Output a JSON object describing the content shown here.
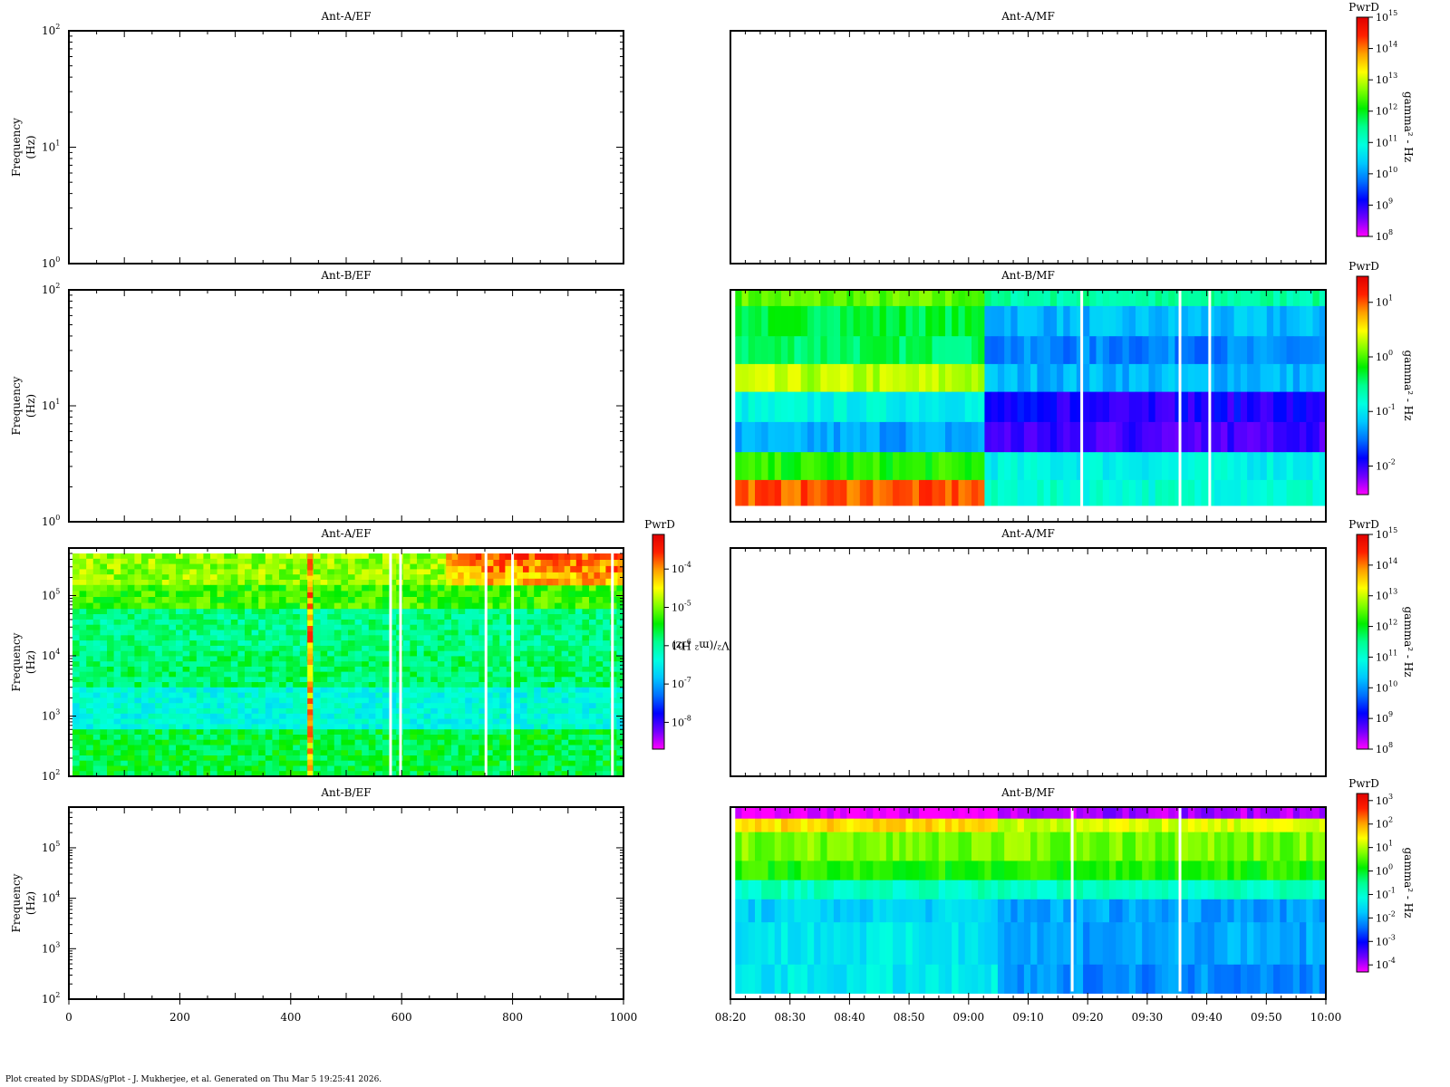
{
  "footer": "Plot created by SDDAS/gPlot - J. Mukherjee, et al.  Generated on Thu Mar 5 19:25:41 2026.",
  "colors": {
    "frame": "#000000",
    "gap": "#ffffff",
    "colormap": [
      "#ff00ff",
      "#7000ff",
      "#0000ff",
      "#0070ff",
      "#00c8ff",
      "#00ffe0",
      "#00ff90",
      "#00ee00",
      "#80ff00",
      "#ffff00",
      "#ffa000",
      "#ff2000",
      "#e00000"
    ]
  },
  "chart_data": [
    {
      "id": "left-1",
      "type": "heatmap",
      "title": "Ant-A/EF",
      "ylabel": [
        "Frequency",
        "(Hz)"
      ],
      "yscale": "log",
      "ylim": [
        1,
        100
      ],
      "yticks": [
        {
          "v": 1,
          "e": "0"
        },
        {
          "v": 10,
          "e": "1"
        },
        {
          "v": 100,
          "e": "2"
        }
      ],
      "xlim": [
        0,
        1000
      ],
      "has_data": false
    },
    {
      "id": "right-1",
      "type": "heatmap",
      "title": "Ant-A/MF",
      "xlim": [
        0,
        100
      ],
      "has_data": false,
      "colorbar": {
        "title": "PwrD",
        "label": "gamma² - Hz",
        "scale": "log",
        "range": [
          100000000,
          1000000000000000
        ],
        "ticks": [
          {
            "v": 100000000,
            "e": "8"
          },
          {
            "v": 1000000000,
            "e": "9"
          },
          {
            "v": 10000000000,
            "e": "10"
          },
          {
            "v": 100000000000,
            "e": "11"
          },
          {
            "v": 1000000000000,
            "e": "12"
          },
          {
            "v": 10000000000000,
            "e": "13"
          },
          {
            "v": 100000000000000,
            "e": "14"
          },
          {
            "v": 1000000000000000,
            "e": "15"
          }
        ]
      }
    },
    {
      "id": "left-2",
      "type": "heatmap",
      "title": "Ant-B/EF",
      "ylabel": [
        "Frequency",
        "(Hz)"
      ],
      "yscale": "log",
      "ylim": [
        1,
        100
      ],
      "yticks": [
        {
          "v": 1,
          "e": "0"
        },
        {
          "v": 10,
          "e": "1"
        },
        {
          "v": 100,
          "e": "2"
        }
      ],
      "xlim": [
        0,
        1000
      ],
      "has_data": false
    },
    {
      "id": "right-2",
      "type": "heatmap",
      "title": "Ant-B/MF",
      "xlim": [
        0,
        100
      ],
      "has_data": true,
      "colorbar": {
        "title": "PwrD",
        "label": "gamma² - Hz",
        "scale": "log",
        "range": [
          0.003,
          30
        ],
        "ticks": [
          {
            "v": 0.01,
            "e": "-2"
          },
          {
            "v": 0.1,
            "e": "-1"
          },
          {
            "v": 1,
            "e": "0"
          },
          {
            "v": 10,
            "e": "1"
          }
        ]
      },
      "rows": [
        {
          "from": 0.93,
          "to": 1.0,
          "levels": [
            0.64,
            0.48
          ]
        },
        {
          "from": 0.8,
          "to": 0.93,
          "levels": [
            0.55,
            0.32
          ]
        },
        {
          "from": 0.68,
          "to": 0.8,
          "levels": [
            0.53,
            0.27
          ]
        },
        {
          "from": 0.56,
          "to": 0.68,
          "levels": [
            0.7,
            0.32
          ]
        },
        {
          "from": 0.43,
          "to": 0.56,
          "levels": [
            0.4,
            0.15
          ]
        },
        {
          "from": 0.3,
          "to": 0.43,
          "levels": [
            0.3,
            0.12
          ]
        },
        {
          "from": 0.18,
          "to": 0.3,
          "levels": [
            0.6,
            0.4
          ]
        },
        {
          "from": 0.07,
          "to": 0.18,
          "levels": [
            0.88,
            0.43
          ]
        }
      ],
      "split_x": 42.5,
      "gaps_x": [
        0.2,
        80.5,
        59.0,
        75.5
      ]
    },
    {
      "id": "left-3",
      "type": "heatmap",
      "title": "Ant-A/EF",
      "ylabel": [
        "Frequency",
        "(Hz)"
      ],
      "yscale": "log",
      "ylim": [
        100,
        500000
      ],
      "yticks": [
        {
          "v": 100,
          "e": "2"
        },
        {
          "v": 1000,
          "e": "3"
        },
        {
          "v": 10000,
          "e": "4"
        },
        {
          "v": 100000,
          "e": "5"
        }
      ],
      "xlim": [
        0,
        1000
      ],
      "has_data": true,
      "colorbar": {
        "title": "PwrD",
        "label": "V²/(m² Hz)",
        "scale": "log",
        "range": [
          2e-09,
          0.0008
        ],
        "ticks": [
          {
            "v": 1e-08,
            "e": "-8"
          },
          {
            "v": 1e-07,
            "e": "-7"
          },
          {
            "v": 1e-06,
            "e": "-6"
          },
          {
            "v": 1e-05,
            "e": "-5"
          },
          {
            "v": 0.0001,
            "e": "-4"
          }
        ]
      },
      "bands": [
        {
          "from": 150000,
          "to": 500000,
          "level": 0.68
        },
        {
          "from": 60000,
          "to": 150000,
          "level": 0.62
        },
        {
          "from": 12000,
          "to": 60000,
          "level": 0.5
        },
        {
          "from": 3000,
          "to": 12000,
          "level": 0.52
        },
        {
          "from": 600,
          "to": 3000,
          "level": 0.42
        },
        {
          "from": 100,
          "to": 600,
          "level": 0.55
        }
      ],
      "bright_stripe_x": [
        430,
        440
      ],
      "hot_region": {
        "x": [
          680,
          1000
        ],
        "y": [
          150000,
          500000
        ],
        "level": 0.88
      },
      "gaps_x": [
        580,
        598,
        752,
        800,
        980
      ]
    },
    {
      "id": "right-3",
      "type": "heatmap",
      "title": "Ant-A/MF",
      "xlim": [
        0,
        100
      ],
      "has_data": false,
      "colorbar": {
        "title": "PwrD",
        "label": "gamma² - Hz",
        "scale": "log",
        "range": [
          100000000,
          1000000000000000
        ],
        "ticks": [
          {
            "v": 100000000,
            "e": "8"
          },
          {
            "v": 1000000000,
            "e": "9"
          },
          {
            "v": 10000000000,
            "e": "10"
          },
          {
            "v": 100000000000,
            "e": "11"
          },
          {
            "v": 1000000000000,
            "e": "12"
          },
          {
            "v": 10000000000000,
            "e": "13"
          },
          {
            "v": 100000000000000,
            "e": "14"
          },
          {
            "v": 1000000000000000,
            "e": "15"
          }
        ]
      }
    },
    {
      "id": "left-4",
      "type": "heatmap",
      "title": "Ant-B/EF",
      "ylabel": [
        "Frequency",
        "(Hz)"
      ],
      "yscale": "log",
      "ylim": [
        100,
        500000
      ],
      "yticks": [
        {
          "v": 100,
          "e": "2"
        },
        {
          "v": 1000,
          "e": "3"
        },
        {
          "v": 10000,
          "e": "4"
        },
        {
          "v": 100000,
          "e": "5"
        }
      ],
      "xlim": [
        0,
        1000
      ],
      "has_data": false,
      "xticks": [
        "0",
        "200",
        "400",
        "600",
        "800",
        "1000"
      ]
    },
    {
      "id": "right-4",
      "type": "heatmap",
      "title": "Ant-B/MF",
      "xlim": [
        0,
        100
      ],
      "has_data": true,
      "xticks": [
        "08:20",
        "08:30",
        "08:40",
        "08:50",
        "09:00",
        "09:10",
        "09:20",
        "09:30",
        "09:40",
        "09:50",
        "10:00"
      ],
      "colorbar": {
        "title": "PwrD",
        "label": "gamma² - Hz",
        "scale": "log",
        "range": [
          5e-05,
          2000
        ],
        "ticks": [
          {
            "v": 0.0001,
            "e": "-4"
          },
          {
            "v": 0.001,
            "e": "-3"
          },
          {
            "v": 0.01,
            "e": "-2"
          },
          {
            "v": 0.1,
            "e": "-1"
          },
          {
            "v": 1,
            "e": "0"
          },
          {
            "v": 10,
            "e": "1"
          },
          {
            "v": 100,
            "e": "2"
          },
          {
            "v": 1000,
            "e": "3"
          }
        ]
      },
      "rows": [
        {
          "from": 0.94,
          "to": 1.0,
          "levels": [
            0.0,
            0.05
          ]
        },
        {
          "from": 0.87,
          "to": 0.94,
          "levels": [
            0.78,
            0.72
          ]
        },
        {
          "from": 0.72,
          "to": 0.87,
          "levels": [
            0.66,
            0.66
          ]
        },
        {
          "from": 0.62,
          "to": 0.72,
          "levels": [
            0.6,
            0.6
          ]
        },
        {
          "from": 0.52,
          "to": 0.62,
          "levels": [
            0.45,
            0.45
          ]
        },
        {
          "from": 0.4,
          "to": 0.52,
          "levels": [
            0.35,
            0.3
          ]
        },
        {
          "from": 0.18,
          "to": 0.4,
          "levels": [
            0.38,
            0.3
          ]
        },
        {
          "from": 0.03,
          "to": 0.18,
          "levels": [
            0.38,
            0.28
          ]
        }
      ],
      "split_x": 44,
      "gaps_x": [
        0.2,
        57.4,
        75.5
      ]
    }
  ]
}
